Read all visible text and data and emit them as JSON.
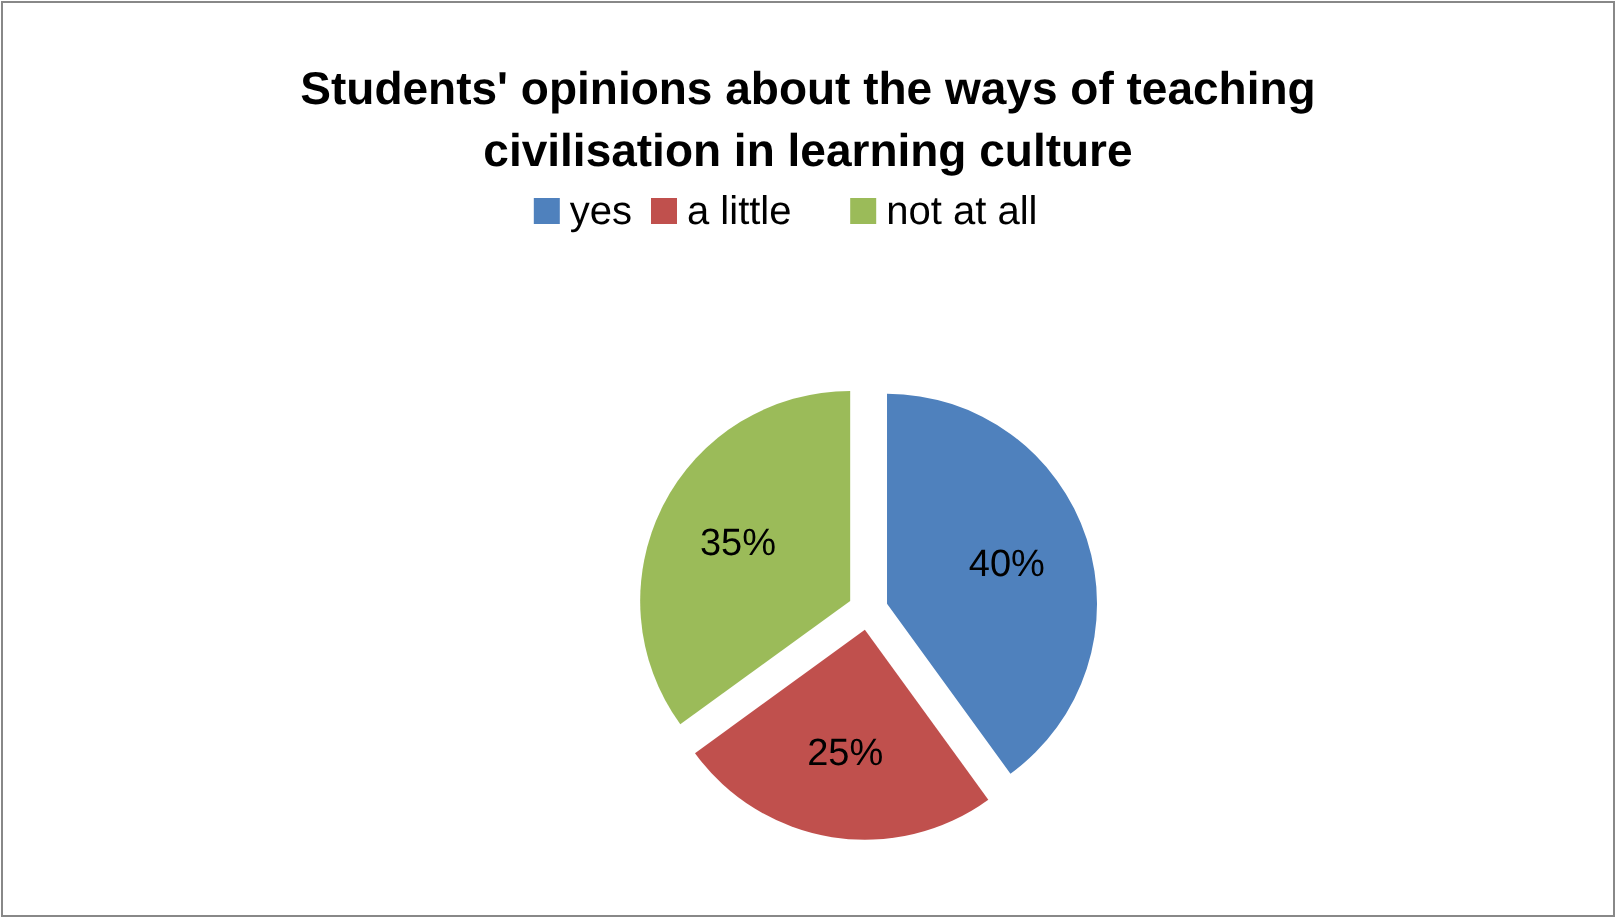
{
  "chart_data": {
    "type": "pie",
    "title": "Students' opinions about the ways of teaching civilisation in learning culture",
    "categories": [
      "yes",
      "a little",
      "not at all"
    ],
    "values": [
      40,
      25,
      35
    ],
    "colors": [
      "#4f81bd",
      "#c0504d",
      "#9bbb59"
    ],
    "value_labels": [
      "40%",
      "25%",
      "35%"
    ],
    "legend": "top"
  }
}
